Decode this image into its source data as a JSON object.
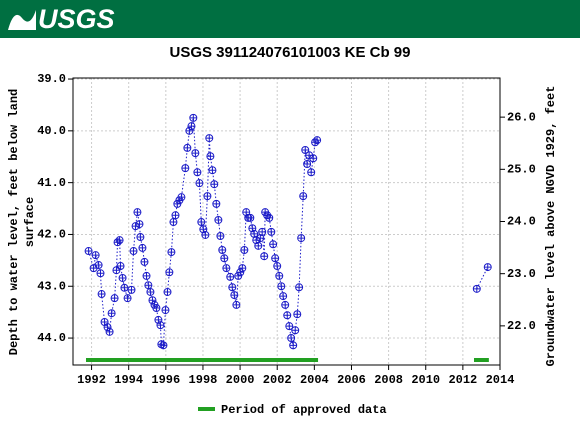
{
  "header": {
    "logo": "USGS"
  },
  "chart_data": {
    "type": "scatter",
    "title": "USGS 391124076101003 KE Cb  99",
    "y_label": [
      "Depth to water level, feet below land",
      "surface"
    ],
    "y2_label": "Groundwater level above NGVD 1929, feet",
    "xlim": [
      1991.0,
      2014.0
    ],
    "xticks": [
      1992,
      1994,
      1996,
      1998,
      2000,
      2002,
      2004,
      2006,
      2008,
      2010,
      2012,
      2014
    ],
    "ylim": [
      44.52,
      38.98
    ],
    "yticks": [
      {
        "value": 39,
        "label": "39.0"
      },
      {
        "value": 40,
        "label": "40.0"
      },
      {
        "value": 41,
        "label": "41.0"
      },
      {
        "value": 42,
        "label": "42.0"
      },
      {
        "value": 43,
        "label": "43.0"
      },
      {
        "value": 44,
        "label": "44.0"
      }
    ],
    "y2lim": [
      21.25,
      26.75
    ],
    "y2ticks": [
      {
        "value": 22,
        "label": "22.0"
      },
      {
        "value": 23,
        "label": "23.0"
      },
      {
        "value": 24,
        "label": "24.0"
      },
      {
        "value": 25,
        "label": "25.0"
      },
      {
        "value": 26,
        "label": "26.0"
      }
    ],
    "grid": true,
    "series": [
      {
        "color": "#1c1cc8",
        "x": [
          1991.84,
          1992.11,
          1992.22,
          1992.38,
          1992.48,
          1992.54,
          1992.7,
          1992.86,
          1992.97,
          1993.08,
          1993.24,
          1993.34,
          1993.4,
          1993.51,
          1993.56,
          1993.67,
          1993.77,
          1993.94,
          1994.15,
          1994.26,
          1994.37,
          1994.47,
          1994.58,
          1994.63,
          1994.74,
          1994.85,
          1994.96,
          1995.06,
          1995.17,
          1995.28,
          1995.39,
          1995.49,
          1995.6,
          1995.71,
          1995.76,
          1995.87,
          1995.98,
          1996.09,
          1996.19,
          1996.3,
          1996.41,
          1996.52,
          1996.62,
          1996.73,
          1996.84,
          1997.05,
          1997.16,
          1997.27,
          1997.38,
          1997.48,
          1997.59,
          1997.7,
          1997.81,
          1997.91,
          1998.02,
          1998.13,
          1998.24,
          1998.34,
          1998.4,
          1998.51,
          1998.61,
          1998.72,
          1998.83,
          1998.94,
          1999.04,
          1999.15,
          1999.26,
          1999.47,
          1999.58,
          1999.69,
          1999.8,
          1999.9,
          2000.01,
          2000.12,
          2000.23,
          2000.33,
          2000.44,
          2000.55,
          2000.66,
          2000.76,
          2000.87,
          2000.98,
          2001.09,
          2001.19,
          2001.3,
          2001.35,
          2001.46,
          2001.57,
          2001.68,
          2001.78,
          2001.89,
          2002.0,
          2002.11,
          2002.22,
          2002.32,
          2002.43,
          2002.54,
          2002.65,
          2002.75,
          2002.86,
          2002.97,
          2003.08,
          2003.18,
          2003.29,
          2003.4,
          2003.51,
          2003.61,
          2003.72,
          2003.83,
          2003.94,
          2004.04,
          2004.15,
          null,
          2012.75,
          2013.34
        ],
        "values": [
          42.32,
          42.65,
          42.4,
          42.59,
          42.75,
          43.15,
          43.69,
          43.79,
          43.88,
          43.52,
          43.23,
          42.69,
          42.15,
          42.11,
          42.61,
          42.84,
          43.03,
          43.23,
          43.07,
          42.32,
          41.84,
          41.57,
          41.8,
          42.05,
          42.26,
          42.53,
          42.8,
          42.98,
          43.11,
          43.27,
          43.36,
          43.42,
          43.65,
          43.75,
          44.12,
          44.14,
          43.46,
          43.11,
          42.73,
          42.34,
          41.76,
          41.63,
          41.41,
          41.34,
          41.28,
          40.72,
          40.33,
          40.0,
          39.91,
          39.75,
          40.43,
          40.8,
          41.01,
          41.76,
          41.9,
          42.01,
          41.26,
          40.14,
          40.49,
          40.76,
          41.03,
          41.41,
          41.72,
          42.03,
          42.3,
          42.46,
          42.65,
          42.82,
          43.02,
          43.17,
          43.36,
          42.8,
          42.73,
          42.65,
          42.3,
          41.57,
          41.68,
          41.68,
          41.88,
          41.99,
          42.11,
          42.22,
          42.07,
          41.95,
          42.42,
          41.57,
          41.63,
          41.68,
          41.95,
          42.19,
          42.46,
          42.61,
          42.8,
          43.0,
          43.19,
          43.36,
          43.56,
          43.77,
          44.0,
          44.14,
          43.85,
          43.54,
          43.02,
          42.07,
          41.26,
          40.37,
          40.64,
          40.47,
          40.8,
          40.53,
          40.22,
          40.18,
          null,
          43.05,
          42.63
        ]
      }
    ],
    "approved": {
      "name": "Period of approved data",
      "color": "#22a022",
      "periods": [
        [
          1991.7,
          2004.2
        ],
        [
          2012.6,
          2013.4
        ]
      ]
    }
  }
}
